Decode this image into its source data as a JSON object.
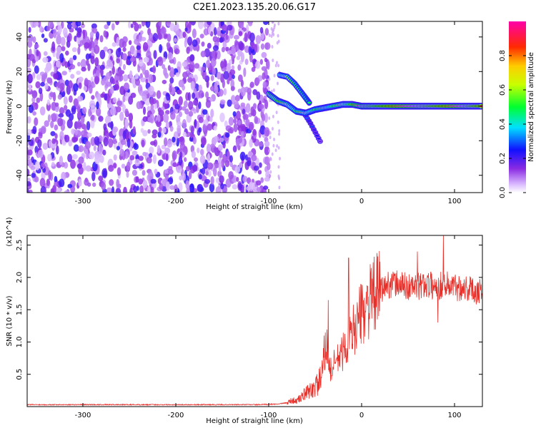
{
  "figure_title": "C2E1.2023.135.20.06.G17",
  "colors": {
    "snr_line": "#e8302a",
    "spectrogram_noise": "#7a3cf0",
    "axis": "#000000"
  },
  "chart_data": [
    {
      "type": "heatmap",
      "xlabel": "Height of straight line (km)",
      "ylabel": "Frequency (Hz)",
      "xlim": [
        -360,
        130
      ],
      "ylim": [
        -50,
        49
      ],
      "xticks": [
        -300,
        -200,
        -100,
        0,
        100
      ],
      "yticks": [
        -40,
        -20,
        0,
        20,
        40
      ],
      "grid": false,
      "colormap": "rainbow (white-violet-blue-cyan-green-yellow-orange-red-magenta)",
      "colorbar": {
        "label": "Normalized spectral amplitude",
        "range": [
          0,
          1
        ],
        "ticks": [
          0.0,
          0.2,
          0.4,
          0.6,
          0.8
        ]
      },
      "features": {
        "noise_region_x": [
          -360,
          -100
        ],
        "noise_amplitude": 0.3,
        "carrier_track": [
          {
            "x": -100,
            "y": 7,
            "amp": 0.75
          },
          {
            "x": -90,
            "y": 3,
            "amp": 0.7
          },
          {
            "x": -80,
            "y": 1,
            "amp": 0.65
          },
          {
            "x": -70,
            "y": -3,
            "amp": 0.6
          },
          {
            "x": -60,
            "y": -4,
            "amp": 0.65
          },
          {
            "x": -50,
            "y": -2,
            "amp": 0.6
          },
          {
            "x": -40,
            "y": -1,
            "amp": 0.6
          },
          {
            "x": -30,
            "y": 0,
            "amp": 0.65
          },
          {
            "x": -20,
            "y": 1,
            "amp": 0.7
          },
          {
            "x": -10,
            "y": 1,
            "amp": 0.75
          },
          {
            "x": 0,
            "y": 0,
            "amp": 0.85
          },
          {
            "x": 30,
            "y": 0,
            "amp": 0.9
          },
          {
            "x": 60,
            "y": 0,
            "amp": 0.92
          },
          {
            "x": 90,
            "y": 0,
            "amp": 0.92
          },
          {
            "x": 130,
            "y": 0,
            "amp": 0.92
          }
        ],
        "upper_branch": [
          {
            "x": -88,
            "y": 18,
            "amp": 0.6
          },
          {
            "x": -80,
            "y": 17,
            "amp": 0.65
          },
          {
            "x": -72,
            "y": 13,
            "amp": 0.55
          },
          {
            "x": -62,
            "y": 6,
            "amp": 0.5
          },
          {
            "x": -55,
            "y": 1,
            "amp": 0.45
          }
        ],
        "lower_tail": [
          {
            "x": -62,
            "y": -4,
            "amp": 0.3
          },
          {
            "x": -55,
            "y": -10,
            "amp": 0.25
          },
          {
            "x": -48,
            "y": -17,
            "amp": 0.2
          },
          {
            "x": -43,
            "y": -22,
            "amp": 0.15
          }
        ]
      }
    },
    {
      "type": "line",
      "xlabel": "Height of straight line (km)",
      "ylabel": "SNR (10 * v/v)",
      "y_multiplier": "(x10^4)",
      "xlim": [
        -360,
        130
      ],
      "ylim": [
        0,
        2.65
      ],
      "xticks": [
        -300,
        -200,
        -100,
        0,
        100
      ],
      "yticks": [
        0.5,
        1.0,
        1.5,
        2.0,
        2.5
      ],
      "grid": false,
      "series": [
        {
          "x": [
            -360,
            -300,
            -250,
            -200,
            -150,
            -110,
            -100,
            -90,
            -80,
            -75,
            -70,
            -65,
            -60,
            -55,
            -50,
            -45,
            -42,
            -38,
            -35,
            -32,
            -30,
            -25,
            -20,
            -15,
            -10,
            -5,
            0,
            5,
            10,
            15,
            20,
            25,
            30,
            40,
            50,
            60,
            70,
            80,
            90,
            100,
            110,
            120,
            130
          ],
          "values": [
            0.03,
            0.03,
            0.03,
            0.03,
            0.03,
            0.03,
            0.035,
            0.04,
            0.06,
            0.1,
            0.08,
            0.15,
            0.2,
            0.25,
            0.3,
            0.4,
            0.5,
            1.05,
            0.6,
            0.55,
            0.65,
            0.75,
            0.85,
            1.0,
            1.15,
            1.3,
            1.45,
            1.55,
            1.65,
            1.75,
            1.8,
            1.85,
            1.9,
            1.9,
            1.85,
            1.85,
            1.9,
            1.85,
            1.9,
            1.85,
            1.85,
            1.8,
            1.8
          ],
          "spikes": [
            {
              "x": -36,
              "value": 1.65
            },
            {
              "x": -14,
              "value": 2.3
            },
            {
              "x": 88,
              "value": 2.65
            },
            {
              "x": 60,
              "value": 2.4
            },
            {
              "x": 82,
              "value": 1.3
            }
          ]
        }
      ]
    }
  ]
}
